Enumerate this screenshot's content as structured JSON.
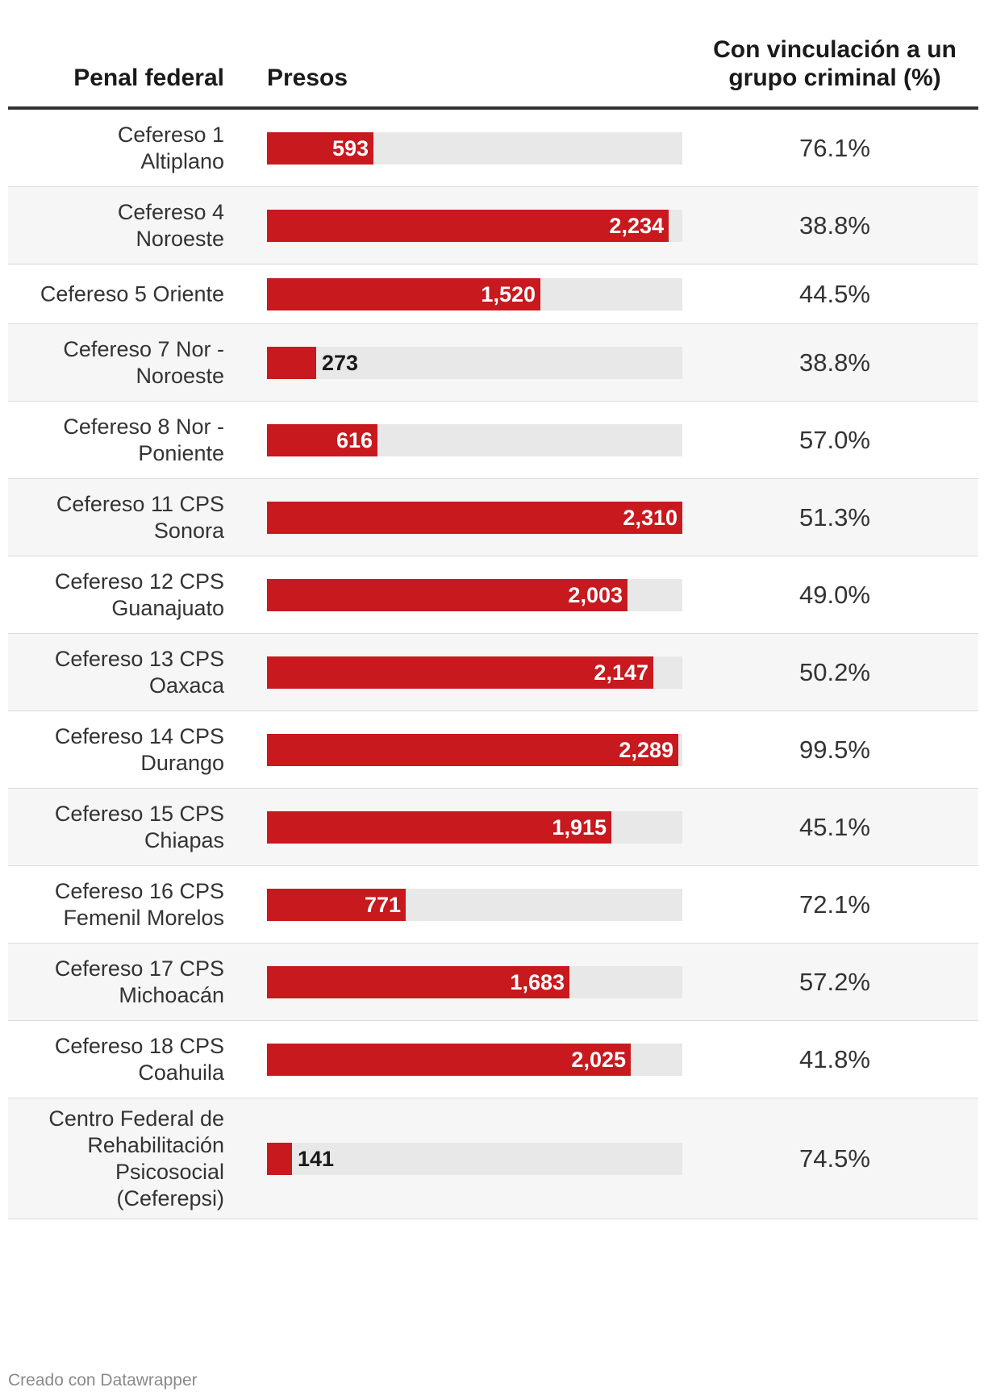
{
  "chart_data": {
    "type": "table",
    "columns": [
      "Penal federal",
      "Presos",
      "Con vinculación a un grupo criminal (%)"
    ],
    "max_value": 2310,
    "rows": [
      {
        "name": "Cefereso 1 Altiplano",
        "name_lines": [
          "Cefereso 1",
          "Altiplano"
        ],
        "presos": 593,
        "presos_label": "593",
        "pct": "76.1%"
      },
      {
        "name": "Cefereso 4 Noroeste",
        "name_lines": [
          "Cefereso 4",
          "Noroeste"
        ],
        "presos": 2234,
        "presos_label": "2,234",
        "pct": "38.8%"
      },
      {
        "name": "Cefereso 5 Oriente",
        "name_lines": [
          "Cefereso 5 Oriente"
        ],
        "presos": 1520,
        "presos_label": "1,520",
        "pct": "44.5%"
      },
      {
        "name": "Cefereso 7 Nor - Noroeste",
        "name_lines": [
          "Cefereso 7 Nor -",
          "Noroeste"
        ],
        "presos": 273,
        "presos_label": "273",
        "pct": "38.8%"
      },
      {
        "name": "Cefereso 8 Nor - Poniente",
        "name_lines": [
          "Cefereso 8 Nor -",
          "Poniente"
        ],
        "presos": 616,
        "presos_label": "616",
        "pct": "57.0%"
      },
      {
        "name": "Cefereso 11 CPS Sonora",
        "name_lines": [
          "Cefereso 11 CPS",
          "Sonora"
        ],
        "presos": 2310,
        "presos_label": "2,310",
        "pct": "51.3%"
      },
      {
        "name": "Cefereso 12 CPS Guanajuato",
        "name_lines": [
          "Cefereso 12 CPS",
          "Guanajuato"
        ],
        "presos": 2003,
        "presos_label": "2,003",
        "pct": "49.0%"
      },
      {
        "name": "Cefereso 13 CPS Oaxaca",
        "name_lines": [
          "Cefereso 13 CPS",
          "Oaxaca"
        ],
        "presos": 2147,
        "presos_label": "2,147",
        "pct": "50.2%"
      },
      {
        "name": "Cefereso 14 CPS Durango",
        "name_lines": [
          "Cefereso 14 CPS",
          "Durango"
        ],
        "presos": 2289,
        "presos_label": "2,289",
        "pct": "99.5%"
      },
      {
        "name": "Cefereso 15 CPS Chiapas",
        "name_lines": [
          "Cefereso 15 CPS",
          "Chiapas"
        ],
        "presos": 1915,
        "presos_label": "1,915",
        "pct": "45.1%"
      },
      {
        "name": "Cefereso 16 CPS Femenil Morelos",
        "name_lines": [
          "Cefereso 16 CPS",
          "Femenil Morelos"
        ],
        "presos": 771,
        "presos_label": "771",
        "pct": "72.1%"
      },
      {
        "name": "Cefereso 17 CPS Michoacán",
        "name_lines": [
          "Cefereso 17 CPS",
          "Michoacán"
        ],
        "presos": 1683,
        "presos_label": "1,683",
        "pct": "57.2%"
      },
      {
        "name": "Cefereso 18 CPS Coahuila",
        "name_lines": [
          "Cefereso 18 CPS",
          "Coahuila"
        ],
        "presos": 2025,
        "presos_label": "2,025",
        "pct": "41.8%"
      },
      {
        "name": "Centro Federal de Rehabilitación Psicosocial (Ceferepsi)",
        "name_lines": [
          "Centro Federal de",
          "Rehabilitación",
          "Psicosocial",
          "(Ceferepsi)"
        ],
        "presos": 141,
        "presos_label": "141",
        "pct": "74.5%"
      }
    ]
  },
  "header": {
    "penal": "Penal federal",
    "presos": "Presos",
    "pct_line1": "Con vinculación a un",
    "pct_line2": "grupo criminal (%)"
  },
  "colors": {
    "bar": "#c8191e",
    "track": "#e8e8e8",
    "alt_row": "#f6f6f6"
  },
  "footer": {
    "credit": "Creado con Datawrapper"
  }
}
